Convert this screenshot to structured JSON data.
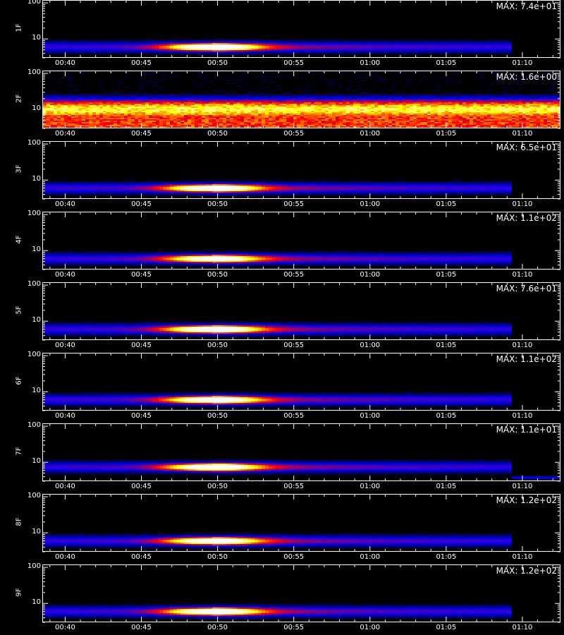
{
  "chart_data": {
    "type": "heatmap",
    "panels": [
      {
        "label": "1F",
        "max_text": "MAX: 7.4e+01",
        "peak": 1.0,
        "band": "low",
        "y_ticks": [
          "100",
          "10"
        ]
      },
      {
        "label": "2F",
        "max_text": "MAX: 1.6e+00",
        "peak": 0.8,
        "band": "noise",
        "y_ticks": [
          "100",
          "10"
        ]
      },
      {
        "label": "3F",
        "max_text": "MAX: 6.5e+01",
        "peak": 0.95,
        "band": "low",
        "y_ticks": [
          "100",
          "10"
        ]
      },
      {
        "label": "4F",
        "max_text": "MAX: 1.1e+02",
        "peak": 0.85,
        "band": "low",
        "y_ticks": [
          "100",
          "10"
        ]
      },
      {
        "label": "5F",
        "max_text": "MAX: 7.6e+01",
        "peak": 1.0,
        "band": "low",
        "y_ticks": [
          "100",
          "10"
        ]
      },
      {
        "label": "6F",
        "max_text": "MAX: 1.1e+02",
        "peak": 0.95,
        "band": "low",
        "y_ticks": [
          "100",
          "10"
        ]
      },
      {
        "label": "7F",
        "max_text": "MAX: 1.1e+01",
        "peak": 0.95,
        "band": "mid",
        "y_ticks": [
          "100",
          "10"
        ]
      },
      {
        "label": "8F",
        "max_text": "MAX: 1.2e+02",
        "peak": 0.9,
        "band": "low",
        "y_ticks": [
          "100",
          "10"
        ]
      },
      {
        "label": "9F",
        "max_text": "MAX: 1.2e+02",
        "peak": 0.95,
        "band": "low",
        "y_ticks": [
          "100",
          "10"
        ]
      }
    ],
    "x_tick_labels": [
      "00:40",
      "00:45",
      "00:50",
      "00:55",
      "01:00",
      "01:05",
      "01:10"
    ],
    "x_ticks_min": [
      40,
      45,
      50,
      55,
      60,
      65,
      70
    ],
    "x_range_min": [
      38.5,
      72.5
    ],
    "data_end_min": 69.2,
    "peak_time_min": 49.5,
    "y_scale": "log",
    "y_range": [
      3,
      120
    ],
    "colormap": [
      "#000000",
      "#0000ff",
      "#ff0000",
      "#ffff00",
      "#ffffff"
    ],
    "xlabel": "",
    "title": ""
  }
}
